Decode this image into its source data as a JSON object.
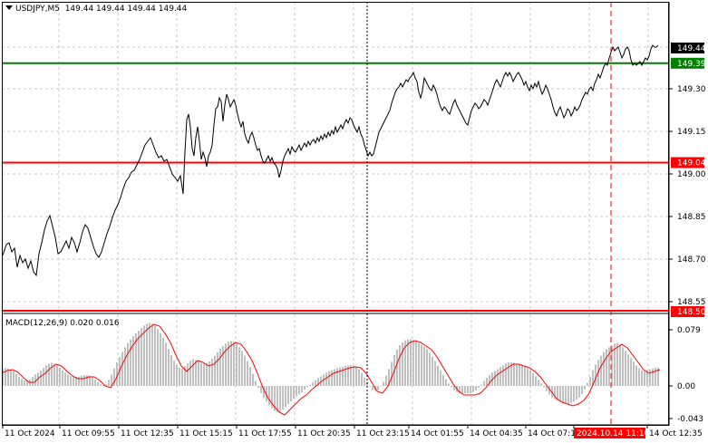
{
  "header": {
    "symbol_label": "USDJPY,M5",
    "ohlc": "149.44 149.44 149.44 149.44"
  },
  "macd": {
    "label": "MACD(12,26,9) 0.020 0.016",
    "axis_ticks": [
      "0.079",
      "0.00",
      "-0.043"
    ]
  },
  "price_axis": {
    "ticks": [
      "149.30",
      "149.15",
      "149.00",
      "148.85",
      "148.70",
      "148.55"
    ],
    "markers": [
      {
        "label": "149.44",
        "role": "current-price",
        "bg": "#000000",
        "fg": "#ffffff"
      },
      {
        "label": "149.39",
        "role": "green-level",
        "bg": "#008000",
        "fg": "#ffffff"
      },
      {
        "label": "149.04",
        "role": "red-level",
        "bg": "#ff0000",
        "fg": "#ffffff"
      },
      {
        "label": "148.50",
        "role": "red-level-low",
        "bg": "#ff0000",
        "fg": "#ffffff"
      }
    ]
  },
  "time_axis": {
    "labels": [
      "11 Oct 2024",
      "11 Oct 09:55",
      "11 Oct 12:35",
      "11 Oct 15:15",
      "11 Oct 17:55",
      "11 Oct 20:35",
      "11 Oct 23:15",
      "14 Oct 01:55",
      "14 Oct 04:35",
      "14 Oct 07:15",
      "2024.10.14 11:10",
      "14 Oct 12:35"
    ],
    "highlight": "2024.10.14 11:10"
  },
  "levels": {
    "green": 149.39,
    "red": 149.04,
    "red_low": 148.5
  },
  "colors": {
    "green_level": "#008000",
    "red_level": "#ff0000",
    "price_line": "#000000",
    "macd_hist": "#c0c0c0",
    "macd_signal": "#ff0000",
    "grid": "#c8c8c8"
  }
}
